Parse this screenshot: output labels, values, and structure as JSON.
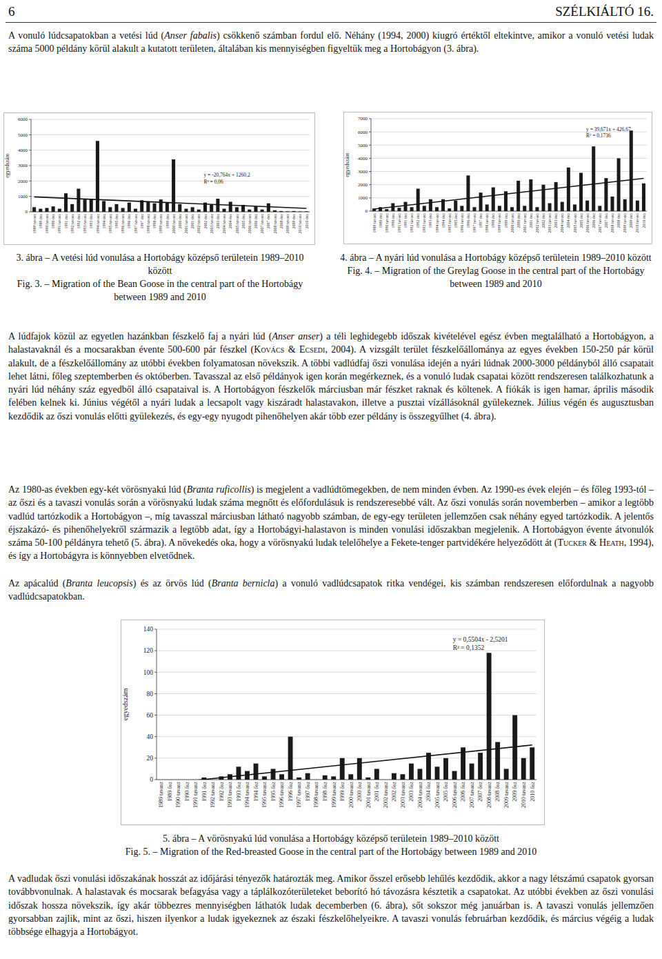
{
  "header": {
    "page_number": "6",
    "journal": "SZÉLKIÁLTÓ 16."
  },
  "paragraphs": [
    [
      {
        "text": "A vonuló lúdcsapatokban a vetési lúd (",
        "style": "normal"
      },
      {
        "text": "Anser fabalis",
        "style": "italic"
      },
      {
        "text": ") csökkenő számban fordul elő. Néhány (1994, 2000) kiugró értéktől eltekintve, amikor a vonuló vetési ludak száma 5000 példány körül alakult a kutatott területen, általában kis mennyiségben figyeltük meg a Hortobágyon (3. ábra).",
        "style": "normal"
      }
    ],
    [
      {
        "text": "A lúdfajok közül az egyetlen hazánkban fészkelő faj a nyári lúd (",
        "style": "normal"
      },
      {
        "text": "Anser anser",
        "style": "italic"
      },
      {
        "text": ") a téli leghidegebb időszak kivételével egész évben megtalálható a Hortobágyon, a halastavaknál és a mocsarakban évente 500-600 pár fészkel (",
        "style": "normal"
      },
      {
        "text": "Kovács & Ecsedi",
        "style": "smallcaps"
      },
      {
        "text": ", 2004). A vizsgált terület fészkelőállománya az egyes években 150-250 pár körül alakult, de a fészkelőállomány az utóbbi években folyamatosan növekszik. A többi vadlúdfaj őszi vonulása idején a nyári lúdnak 2000-3000 példányból álló csapatait lehet látni, főleg szeptemberben és októberben. Tavasszal az első példányok igen korán megérkeznek, és a vonuló ludak csapatai között rendszeresen találkozhatunk a nyári lúd néhány száz egyedből álló csapataival is. A Hortobágyon fészkelők márciusban már fészket raknak és költenek. A fiókák is igen hamar, április második felében kelnek ki. Június végétől a nyári ludak a lecsapolt vagy kiszáradt halastavakon, illetve a pusztai vízállásoknál gyülekeznek. Július végén és augusztusban kezdődik az őszi vonulás előtti gyülekezés, és egy-egy nyugodt pihenőhelyen akár több ezer példány is összegyűlhet (4. ábra).",
        "style": "normal"
      }
    ],
    [
      {
        "text": "Az 1980-as években egy-két vörösnyakú lúd (",
        "style": "normal"
      },
      {
        "text": "Branta ruficollis",
        "style": "italic"
      },
      {
        "text": ") is megjelent a vadlúdtömegekben, de nem minden évben. Az 1990-es évek elején – és főleg 1993-tól – az őszi és a tavaszi vonulás során a vörösnyakú ludak száma megnőtt és előfordulásuk is rendszeresebbé vált. Az őszi vonulás során novemberben – amikor a legtöbb vadlúd tartózkodik a Hortobágyon –, míg tavasszal márciusban látható nagyobb számban, de egy-egy területen jellemzően csak néhány egyed tartózkodik. A jelentős éjszakázó- és pihenőhelyekről származik a legtöbb adat, így a Hortobágyi-halastavon is minden vonulási időszakban megjelenik. A Hortobágyon évente átvonulók száma 50-100 példányra tehető (5. ábra). A növekedés oka, hogy a vörösnyakú ludak telelőhelye a Fekete-tenger partvidékére helyeződött át (",
        "style": "normal"
      },
      {
        "text": "Tucker & Heath",
        "style": "smallcaps"
      },
      {
        "text": ", 1994), és így a Hortobágyra is könnyebben elvetődnek.",
        "style": "normal"
      }
    ],
    [
      {
        "text": "Az apácalúd (",
        "style": "normal"
      },
      {
        "text": "Branta leucopsis",
        "style": "italic"
      },
      {
        "text": ") és az örvös lúd (",
        "style": "normal"
      },
      {
        "text": "Branta bernicla",
        "style": "italic"
      },
      {
        "text": ") a vonuló vadlúdcsapatok ritka vendégei, kis számban rendszeresen előfordulnak a nagyobb vadlúdcsapatokban.",
        "style": "normal"
      }
    ],
    [
      {
        "text": "A vadludak őszi vonulási időszakának hosszát az időjárási tényezők határozták meg. Amikor ősszel erősebb lehűlés kezdődik, akkor a nagy létszámú csapatok gyorsan továbbvonulnak. A halastavak és mocsarak befagyása vagy a táplálkozóterületeket beborító hó távozásra késztetik a csapatokat. Az utóbbi években az őszi vonulási időszak hossza növekszik, így akár többezres mennyiségben láthatók ludak decemberben (6. ábra), sőt sokszor még januárban is. A tavaszi vonulás jellemzően gyorsabban zajlik, mint az őszi, hiszen ilyenkor a ludak igyekeznek az északi fészkelőhelyeikre. A tavaszi vonulás februárban kezdődik, és március végéig a ludak többsége elhagyja a Hortobágyot.",
        "style": "normal"
      }
    ]
  ],
  "captions": [
    {
      "hu": "3. ábra – A vetési lúd vonulása a Hortobágy középső területein 1989–2010 között",
      "en": "Fig. 3. – Migration of the Bean Goose in the central part of the Hortobágy between 1989 and 2010"
    },
    {
      "hu": "4. ábra – A nyári lúd vonulása a Hortobágy középső területein 1989–2010 között",
      "en": "Fig. 4. – Migration of the Greylag Goose in the central part of the Hortobágy between 1989 and 2010"
    },
    {
      "hu": "5. ábra – A vörösnyakú lúd vonulása a Hortobágy középső területein 1989–2010 között",
      "en": "Fig. 5. – Migration of the Red-breasted Goose in the central part of the Hortobágy between 1989 and 2010"
    }
  ],
  "chart_data": [
    {
      "type": "bar",
      "y_label": "egyedszám",
      "annotations": [
        "y = -20,764x + 1260,2",
        "R² = 0,06"
      ],
      "color": "#1a1a1a",
      "grid": true,
      "categories": [
        "1989 tavasz",
        "1989 ősz",
        "1990 tavasz",
        "1990 ősz",
        "1991 tavasz",
        "1991 ősz",
        "1992 tavasz",
        "1992 ősz",
        "1993 tavasz",
        "1993 ősz",
        "1994 tavasz",
        "1994 ősz",
        "1995 tavasz",
        "1995 ősz",
        "1996 tavasz",
        "1996 ősz",
        "1997 tavasz",
        "1997 ősz",
        "1998 tavasz",
        "1998 ősz",
        "1999 tavasz",
        "1999 ősz",
        "2000 tavasz",
        "2000 ősz",
        "2001 tavasz",
        "2001 ősz",
        "2002 tavasz",
        "2002 ősz",
        "2003 tavasz",
        "2003 ősz",
        "2004 tavasz",
        "2004 ősz",
        "2005 tavasz",
        "2005 ősz",
        "2006 tavasz",
        "2006 ősz",
        "2007 tavasz",
        "2007 ősz",
        "2008 tavasz",
        "2008 ősz",
        "2009 tavasz",
        "2009 ősz",
        "2010 tavasz",
        "2010 ősz"
      ],
      "values": [
        300,
        200,
        250,
        350,
        200,
        1200,
        500,
        1500,
        800,
        850,
        4600,
        700,
        300,
        500,
        250,
        600,
        200,
        750,
        650,
        550,
        800,
        600,
        3400,
        500,
        200,
        300,
        150,
        600,
        450,
        850,
        200,
        650,
        300,
        450,
        150,
        350,
        150,
        550,
        100,
        50,
        30,
        50,
        20,
        30
      ],
      "ylim": [
        0,
        6000
      ],
      "yticks": [
        0,
        1000,
        2000,
        3000,
        4000,
        5000,
        6000
      ]
    },
    {
      "type": "bar",
      "y_label": "egyedszám",
      "annotations": [
        "y = 39,671x + 426,67",
        "R² = 0,1736"
      ],
      "color": "#1a1a1a",
      "grid": true,
      "categories": [
        "1989 tavasz",
        "1989 ősz",
        "1990 tavasz",
        "1990 ősz",
        "1991 tavasz",
        "1991 ősz",
        "1992 tavasz",
        "1992 ősz",
        "1993 tavasz",
        "1993 ősz",
        "1994 tavasz",
        "1994 ősz",
        "1995 tavasz",
        "1995 ősz",
        "1996 tavasz",
        "1996 ősz",
        "1997 tavasz",
        "1997 ősz",
        "1998 tavasz",
        "1998 ősz",
        "1999 tavasz",
        "1999 ősz",
        "2000 tavasz",
        "2000 ősz",
        "2001 tavasz",
        "2001 ősz",
        "2002 tavasz",
        "2002 ősz",
        "2003 tavasz",
        "2003 ősz",
        "2004 tavasz",
        "2004 ősz",
        "2005 tavasz",
        "2005 ősz",
        "2006 tavasz",
        "2006 ősz",
        "2007 tavasz",
        "2007 ősz",
        "2008 tavasz",
        "2008 ősz",
        "2009 tavasz",
        "2009 ősz",
        "2010 tavasz",
        "2010 ősz"
      ],
      "values": [
        200,
        300,
        150,
        600,
        250,
        700,
        300,
        1700,
        400,
        900,
        300,
        900,
        200,
        800,
        400,
        2700,
        300,
        1400,
        500,
        1800,
        400,
        1500,
        300,
        2300,
        400,
        2400,
        300,
        2000,
        600,
        2200,
        700,
        3300,
        500,
        2900,
        800,
        4900,
        400,
        2500,
        1100,
        4000,
        900,
        6100,
        800,
        2100
      ],
      "ylim": [
        0,
        7000
      ],
      "yticks": [
        0,
        1000,
        2000,
        3000,
        4000,
        5000,
        6000,
        7000
      ]
    },
    {
      "type": "bar",
      "y_label": "egyedszám",
      "annotations": [
        "y = 0,5504x - 2,5201",
        "R² = 0,1352"
      ],
      "color": "#1a1a1a",
      "grid": true,
      "categories": [
        "1989 tavasz",
        "1989 ősz",
        "1990 tavasz",
        "1990 ősz",
        "1991 tavasz",
        "1991 ősz",
        "1992 tavasz",
        "1992 ősz",
        "1993 tavasz",
        "1993 ősz",
        "1994 tavasz",
        "1994 ősz",
        "1995 tavasz",
        "1995 ősz",
        "1996 tavasz",
        "1996 ősz",
        "1997 tavasz",
        "1997 ősz",
        "1998 tavasz",
        "1998 ősz",
        "1999 tavasz",
        "1999 ősz",
        "2000 tavasz",
        "2000 ősz",
        "2001 tavasz",
        "2001 ősz",
        "2002 tavasz",
        "2002 ősz",
        "2003 tavasz",
        "2003 ősz",
        "2004 tavasz",
        "2004 ősz",
        "2005 tavasz",
        "2005 ősz",
        "2006 tavasz",
        "2006 ősz",
        "2007 tavasz",
        "2007 ősz",
        "2008 tavasz",
        "2008 ősz",
        "2009 tavasz",
        "2009 ősz",
        "2010 tavasz",
        "2010 ősz"
      ],
      "values": [
        0,
        0,
        0,
        0,
        0,
        2,
        0,
        3,
        5,
        12,
        8,
        15,
        3,
        10,
        5,
        40,
        2,
        6,
        0,
        4,
        3,
        20,
        5,
        20,
        2,
        10,
        0,
        6,
        5,
        15,
        10,
        25,
        12,
        20,
        8,
        30,
        15,
        25,
        118,
        35,
        10,
        60,
        20,
        30
      ],
      "ylim": [
        0,
        140
      ],
      "yticks": [
        0,
        20,
        40,
        60,
        80,
        100,
        120,
        140
      ]
    }
  ]
}
